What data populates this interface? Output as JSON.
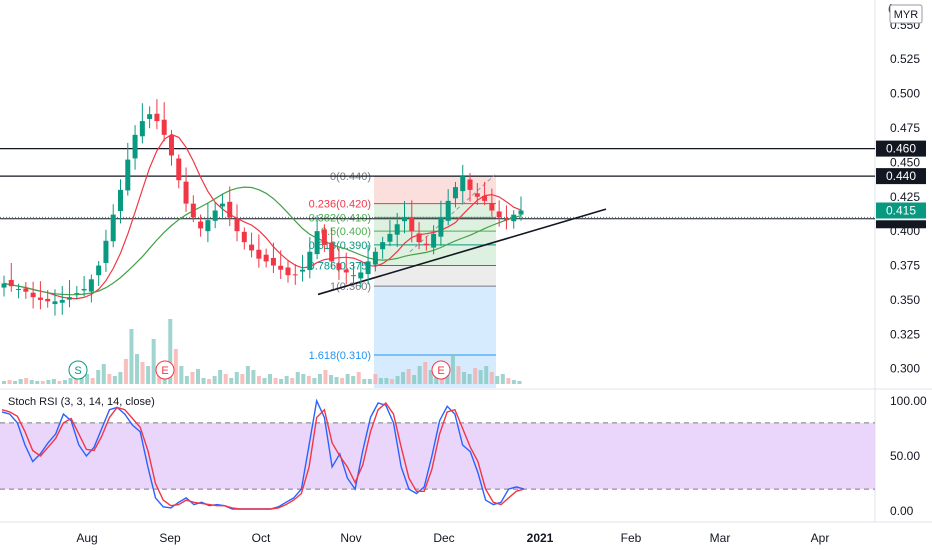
{
  "currency_label": "MYR",
  "top_corner_glyph": "(",
  "chart_data": [
    {
      "type": "candlestick",
      "panel": "price",
      "y_axis_ticks": [
        "0.550",
        "0.525",
        "0.500",
        "0.475",
        "0.450",
        "0.425",
        "0.400",
        "0.375",
        "0.350",
        "0.325",
        "0.300"
      ],
      "ylim": [
        0.286,
        0.568
      ],
      "x_axis_labels": [
        "Aug",
        "Sep",
        "Oct",
        "Nov",
        "Dec",
        "2021",
        "Feb",
        "Mar",
        "Apr"
      ],
      "approx_close_series": [
        0.362,
        0.36,
        0.358,
        0.356,
        0.352,
        0.35,
        0.349,
        0.349,
        0.35,
        0.352,
        0.355,
        0.358,
        0.365,
        0.375,
        0.393,
        0.412,
        0.43,
        0.452,
        0.47,
        0.48,
        0.485,
        0.48,
        0.47,
        0.455,
        0.437,
        0.42,
        0.41,
        0.402,
        0.408,
        0.415,
        0.42,
        0.41,
        0.4,
        0.392,
        0.386,
        0.38,
        0.378,
        0.375,
        0.372,
        0.368,
        0.368,
        0.372,
        0.385,
        0.4,
        0.39,
        0.378,
        0.372,
        0.37,
        0.368,
        0.37,
        0.378,
        0.385,
        0.392,
        0.398,
        0.405,
        0.41,
        0.4,
        0.392,
        0.39,
        0.398,
        0.41,
        0.422,
        0.432,
        0.44,
        0.43,
        0.425,
        0.422,
        0.415,
        0.41,
        0.408,
        0.412,
        0.415
      ],
      "price_labels": [
        {
          "text": "0.460",
          "value": 0.46,
          "style": "dark"
        },
        {
          "text": "0.440",
          "value": 0.44,
          "style": "dark"
        },
        {
          "text": "0.415",
          "value": 0.415,
          "style": "green"
        }
      ],
      "horizontal_lines": [
        0.46,
        0.44,
        0.41
      ],
      "fibonacci_levels": [
        {
          "text": "0(0.440)",
          "value": 0.44
        },
        {
          "text": "0.236(0.420)",
          "value": 0.42
        },
        {
          "text": "0.382(0.410)",
          "value": 0.41
        },
        {
          "text": "0.5(0.400)",
          "value": 0.4
        },
        {
          "text": "0.618(0.390)",
          "value": 0.39
        },
        {
          "text": "0.786(0.375)",
          "value": 0.375
        },
        {
          "text": "1(0.360)",
          "value": 0.36
        },
        {
          "text": "1.618(0.310)",
          "value": 0.31
        }
      ],
      "event_markers": [
        "S",
        "E",
        "E"
      ],
      "moving_average_colors": {
        "fast": "#f23645",
        "slow": "#43a047"
      }
    },
    {
      "type": "line",
      "panel": "oscillator",
      "title": "Stoch RSI (3, 3, 14, 14, close)",
      "y_axis_ticks": [
        "100.00",
        "50.00",
        "0.00"
      ],
      "ylim": [
        -8,
        108
      ],
      "band": [
        20,
        80
      ],
      "series": [
        {
          "key": "k",
          "color": "#2962ff",
          "values": [
            90,
            88,
            80,
            60,
            45,
            52,
            62,
            70,
            88,
            82,
            60,
            50,
            58,
            75,
            92,
            94,
            88,
            78,
            72,
            40,
            12,
            4,
            3,
            8,
            12,
            6,
            8,
            5,
            6,
            5,
            2,
            2,
            2,
            2,
            2,
            2,
            4,
            8,
            12,
            20,
            60,
            100,
            85,
            40,
            52,
            30,
            20,
            55,
            85,
            98,
            96,
            80,
            40,
            20,
            16,
            22,
            50,
            82,
            95,
            88,
            60,
            54,
            35,
            10,
            6,
            8,
            20,
            22,
            20
          ]
        },
        {
          "key": "d",
          "color": "#f23645",
          "values": [
            92,
            90,
            86,
            72,
            55,
            50,
            58,
            66,
            80,
            84,
            70,
            56,
            55,
            68,
            85,
            94,
            92,
            84,
            76,
            55,
            25,
            10,
            5,
            6,
            10,
            8,
            7,
            6,
            5,
            5,
            3,
            2,
            2,
            2,
            2,
            2,
            3,
            6,
            10,
            16,
            40,
            85,
            92,
            62,
            50,
            40,
            26,
            42,
            72,
            92,
            98,
            88,
            58,
            30,
            18,
            18,
            38,
            70,
            90,
            92,
            75,
            58,
            45,
            20,
            8,
            6,
            12,
            18,
            20
          ]
        }
      ]
    }
  ]
}
